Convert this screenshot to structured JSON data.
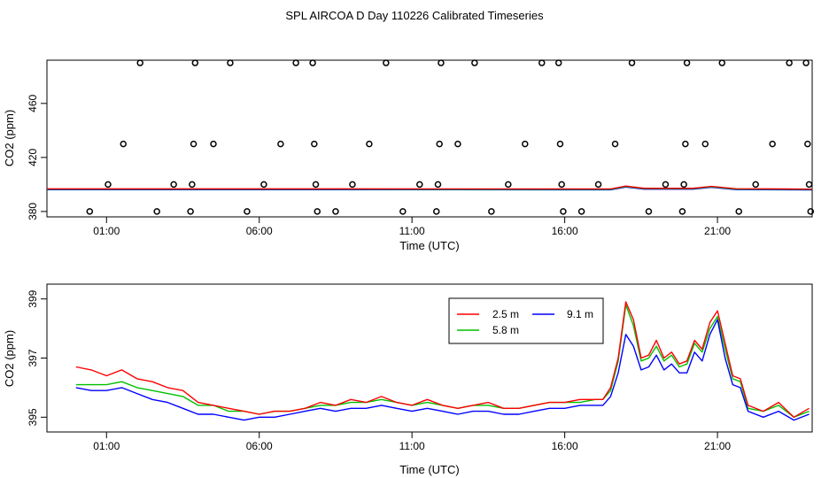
{
  "title": "SPL AIRCOA D  Day 110226  Calibrated Timeseries",
  "colors": {
    "s25": "#ff0000",
    "s58": "#00c000",
    "s91": "#0000ff",
    "circle": "#000000",
    "frame": "#000000"
  },
  "chart_data": [
    {
      "type": "scatter",
      "xlabel": "Time (UTC)",
      "ylabel": "CO2 (ppm)",
      "xlim": [
        -0.95,
        24.1
      ],
      "ylim": [
        376,
        492
      ],
      "x_ticks": [
        {
          "v": 1,
          "label": "01:00"
        },
        {
          "v": 6,
          "label": "06:00"
        },
        {
          "v": 11,
          "label": "11:00"
        },
        {
          "v": 16,
          "label": "16:00"
        },
        {
          "v": 21,
          "label": "21:00"
        }
      ],
      "y_ticks": [
        {
          "v": 380,
          "label": "380"
        },
        {
          "v": 420,
          "label": "420"
        },
        {
          "v": 460,
          "label": "460"
        }
      ],
      "calibration_points": [
        {
          "x": 0.45,
          "y": 380
        },
        {
          "x": 1.05,
          "y": 400
        },
        {
          "x": 1.55,
          "y": 430
        },
        {
          "x": 2.1,
          "y": 490
        },
        {
          "x": 2.65,
          "y": 380
        },
        {
          "x": 3.2,
          "y": 400
        },
        {
          "x": 3.75,
          "y": 380
        },
        {
          "x": 3.8,
          "y": 400
        },
        {
          "x": 3.85,
          "y": 430
        },
        {
          "x": 3.9,
          "y": 490
        },
        {
          "x": 4.5,
          "y": 430
        },
        {
          "x": 5.05,
          "y": 490
        },
        {
          "x": 5.6,
          "y": 380
        },
        {
          "x": 6.15,
          "y": 400
        },
        {
          "x": 6.7,
          "y": 430
        },
        {
          "x": 7.2,
          "y": 490
        },
        {
          "x": 7.75,
          "y": 490
        },
        {
          "x": 7.8,
          "y": 430
        },
        {
          "x": 7.85,
          "y": 400
        },
        {
          "x": 7.9,
          "y": 380
        },
        {
          "x": 8.5,
          "y": 380
        },
        {
          "x": 9.05,
          "y": 400
        },
        {
          "x": 9.6,
          "y": 430
        },
        {
          "x": 10.15,
          "y": 490
        },
        {
          "x": 10.7,
          "y": 380
        },
        {
          "x": 11.25,
          "y": 400
        },
        {
          "x": 11.8,
          "y": 380
        },
        {
          "x": 11.85,
          "y": 400
        },
        {
          "x": 11.9,
          "y": 430
        },
        {
          "x": 11.95,
          "y": 490
        },
        {
          "x": 12.5,
          "y": 430
        },
        {
          "x": 13.05,
          "y": 490
        },
        {
          "x": 13.6,
          "y": 380
        },
        {
          "x": 14.15,
          "y": 400
        },
        {
          "x": 14.7,
          "y": 430
        },
        {
          "x": 15.25,
          "y": 490
        },
        {
          "x": 15.8,
          "y": 490
        },
        {
          "x": 15.85,
          "y": 430
        },
        {
          "x": 15.9,
          "y": 400
        },
        {
          "x": 15.95,
          "y": 380
        },
        {
          "x": 16.55,
          "y": 380
        },
        {
          "x": 17.1,
          "y": 400
        },
        {
          "x": 17.65,
          "y": 430
        },
        {
          "x": 18.2,
          "y": 490
        },
        {
          "x": 18.75,
          "y": 380
        },
        {
          "x": 19.3,
          "y": 400
        },
        {
          "x": 19.85,
          "y": 380
        },
        {
          "x": 19.9,
          "y": 400
        },
        {
          "x": 19.95,
          "y": 430
        },
        {
          "x": 20.0,
          "y": 490
        },
        {
          "x": 20.6,
          "y": 430
        },
        {
          "x": 21.15,
          "y": 490
        },
        {
          "x": 21.7,
          "y": 380
        },
        {
          "x": 22.25,
          "y": 400
        },
        {
          "x": 22.8,
          "y": 430
        },
        {
          "x": 23.35,
          "y": 490
        },
        {
          "x": 23.9,
          "y": 490
        },
        {
          "x": 23.95,
          "y": 430
        },
        {
          "x": 24.0,
          "y": 400
        },
        {
          "x": 24.05,
          "y": 380
        }
      ],
      "series_keys": [
        {
          "x": -0.95,
          "y": 396.5
        },
        {
          "x": 7,
          "y": 396.5
        },
        {
          "x": 17.5,
          "y": 396.4
        },
        {
          "x": 18.0,
          "y": 398.5
        },
        {
          "x": 18.6,
          "y": 396.9
        },
        {
          "x": 20.2,
          "y": 396.9
        },
        {
          "x": 20.8,
          "y": 398.3
        },
        {
          "x": 21.6,
          "y": 396.6
        },
        {
          "x": 24.1,
          "y": 396.3
        }
      ]
    },
    {
      "type": "line",
      "xlabel": "Time (UTC)",
      "ylabel": "CO2 (ppm)",
      "xlim": [
        -0.95,
        24.1
      ],
      "ylim": [
        394.5,
        399.5
      ],
      "x_ticks": [
        {
          "v": 1,
          "label": "01:00"
        },
        {
          "v": 6,
          "label": "06:00"
        },
        {
          "v": 11,
          "label": "11:00"
        },
        {
          "v": 16,
          "label": "16:00"
        },
        {
          "v": 21,
          "label": "21:00"
        }
      ],
      "y_ticks": [
        {
          "v": 395,
          "label": "395"
        },
        {
          "v": 397,
          "label": "397"
        },
        {
          "v": 399,
          "label": "399"
        }
      ],
      "x": [
        0,
        0.5,
        1,
        1.5,
        2,
        2.5,
        3,
        3.5,
        4,
        4.5,
        5,
        5.5,
        6,
        6.5,
        7,
        7.5,
        8,
        8.5,
        9,
        9.5,
        10,
        10.5,
        11,
        11.5,
        12,
        12.5,
        13,
        13.5,
        14,
        14.5,
        15,
        15.5,
        16,
        16.5,
        17,
        17.25,
        17.5,
        17.75,
        18,
        18.25,
        18.5,
        18.75,
        19,
        19.25,
        19.5,
        19.75,
        20,
        20.25,
        20.5,
        20.75,
        21,
        21.25,
        21.5,
        21.75,
        22,
        22.5,
        23,
        23.5,
        24
      ],
      "series": [
        {
          "name": "2.5 m",
          "color": "#ff0000",
          "values": [
            396.7,
            396.6,
            396.4,
            396.6,
            396.3,
            396.2,
            396.0,
            395.9,
            395.5,
            395.4,
            395.3,
            395.2,
            395.1,
            395.2,
            395.2,
            395.3,
            395.5,
            395.4,
            395.6,
            395.5,
            395.7,
            395.5,
            395.4,
            395.6,
            395.4,
            395.3,
            395.4,
            395.5,
            395.3,
            395.3,
            395.4,
            395.5,
            395.5,
            395.6,
            395.6,
            395.6,
            396.0,
            397.0,
            398.9,
            398.3,
            397.0,
            397.1,
            397.6,
            397.0,
            397.2,
            396.8,
            396.9,
            397.6,
            397.3,
            398.2,
            398.6,
            397.5,
            396.4,
            396.3,
            395.4,
            395.2,
            395.5,
            395.0,
            395.3
          ]
        },
        {
          "name": "5.8 m",
          "color": "#00c000",
          "values": [
            396.1,
            396.1,
            396.1,
            396.2,
            396.0,
            395.9,
            395.8,
            395.7,
            395.4,
            395.4,
            395.2,
            395.2,
            395.1,
            395.2,
            395.2,
            395.3,
            395.4,
            395.4,
            395.5,
            395.5,
            395.6,
            395.5,
            395.4,
            395.5,
            395.4,
            395.3,
            395.4,
            395.4,
            395.3,
            395.3,
            395.4,
            395.5,
            395.5,
            395.5,
            395.6,
            395.6,
            395.9,
            396.9,
            398.8,
            398.1,
            396.9,
            397.0,
            397.4,
            396.9,
            397.1,
            396.7,
            396.8,
            397.5,
            397.2,
            398.0,
            398.4,
            397.3,
            396.3,
            396.2,
            395.3,
            395.2,
            395.4,
            395.0,
            395.2
          ]
        },
        {
          "name": "9.1 m",
          "color": "#0000ff",
          "values": [
            396.0,
            395.9,
            395.9,
            396.0,
            395.8,
            395.6,
            395.5,
            395.3,
            395.1,
            395.1,
            395.0,
            394.9,
            395.0,
            395.0,
            395.1,
            395.2,
            395.3,
            395.2,
            395.3,
            395.3,
            395.4,
            395.3,
            395.2,
            395.3,
            395.2,
            395.1,
            395.2,
            395.2,
            395.1,
            395.1,
            395.2,
            395.3,
            395.3,
            395.4,
            395.4,
            395.4,
            395.7,
            396.5,
            397.8,
            397.4,
            396.6,
            396.7,
            397.1,
            396.6,
            396.8,
            396.5,
            396.5,
            397.2,
            396.9,
            397.8,
            398.3,
            397.0,
            396.1,
            396.0,
            395.2,
            395.0,
            395.2,
            394.9,
            395.1
          ]
        }
      ],
      "legend": {
        "placement": "top-right",
        "entries": [
          "2.5 m",
          "9.1 m",
          "5.8 m"
        ]
      }
    }
  ]
}
